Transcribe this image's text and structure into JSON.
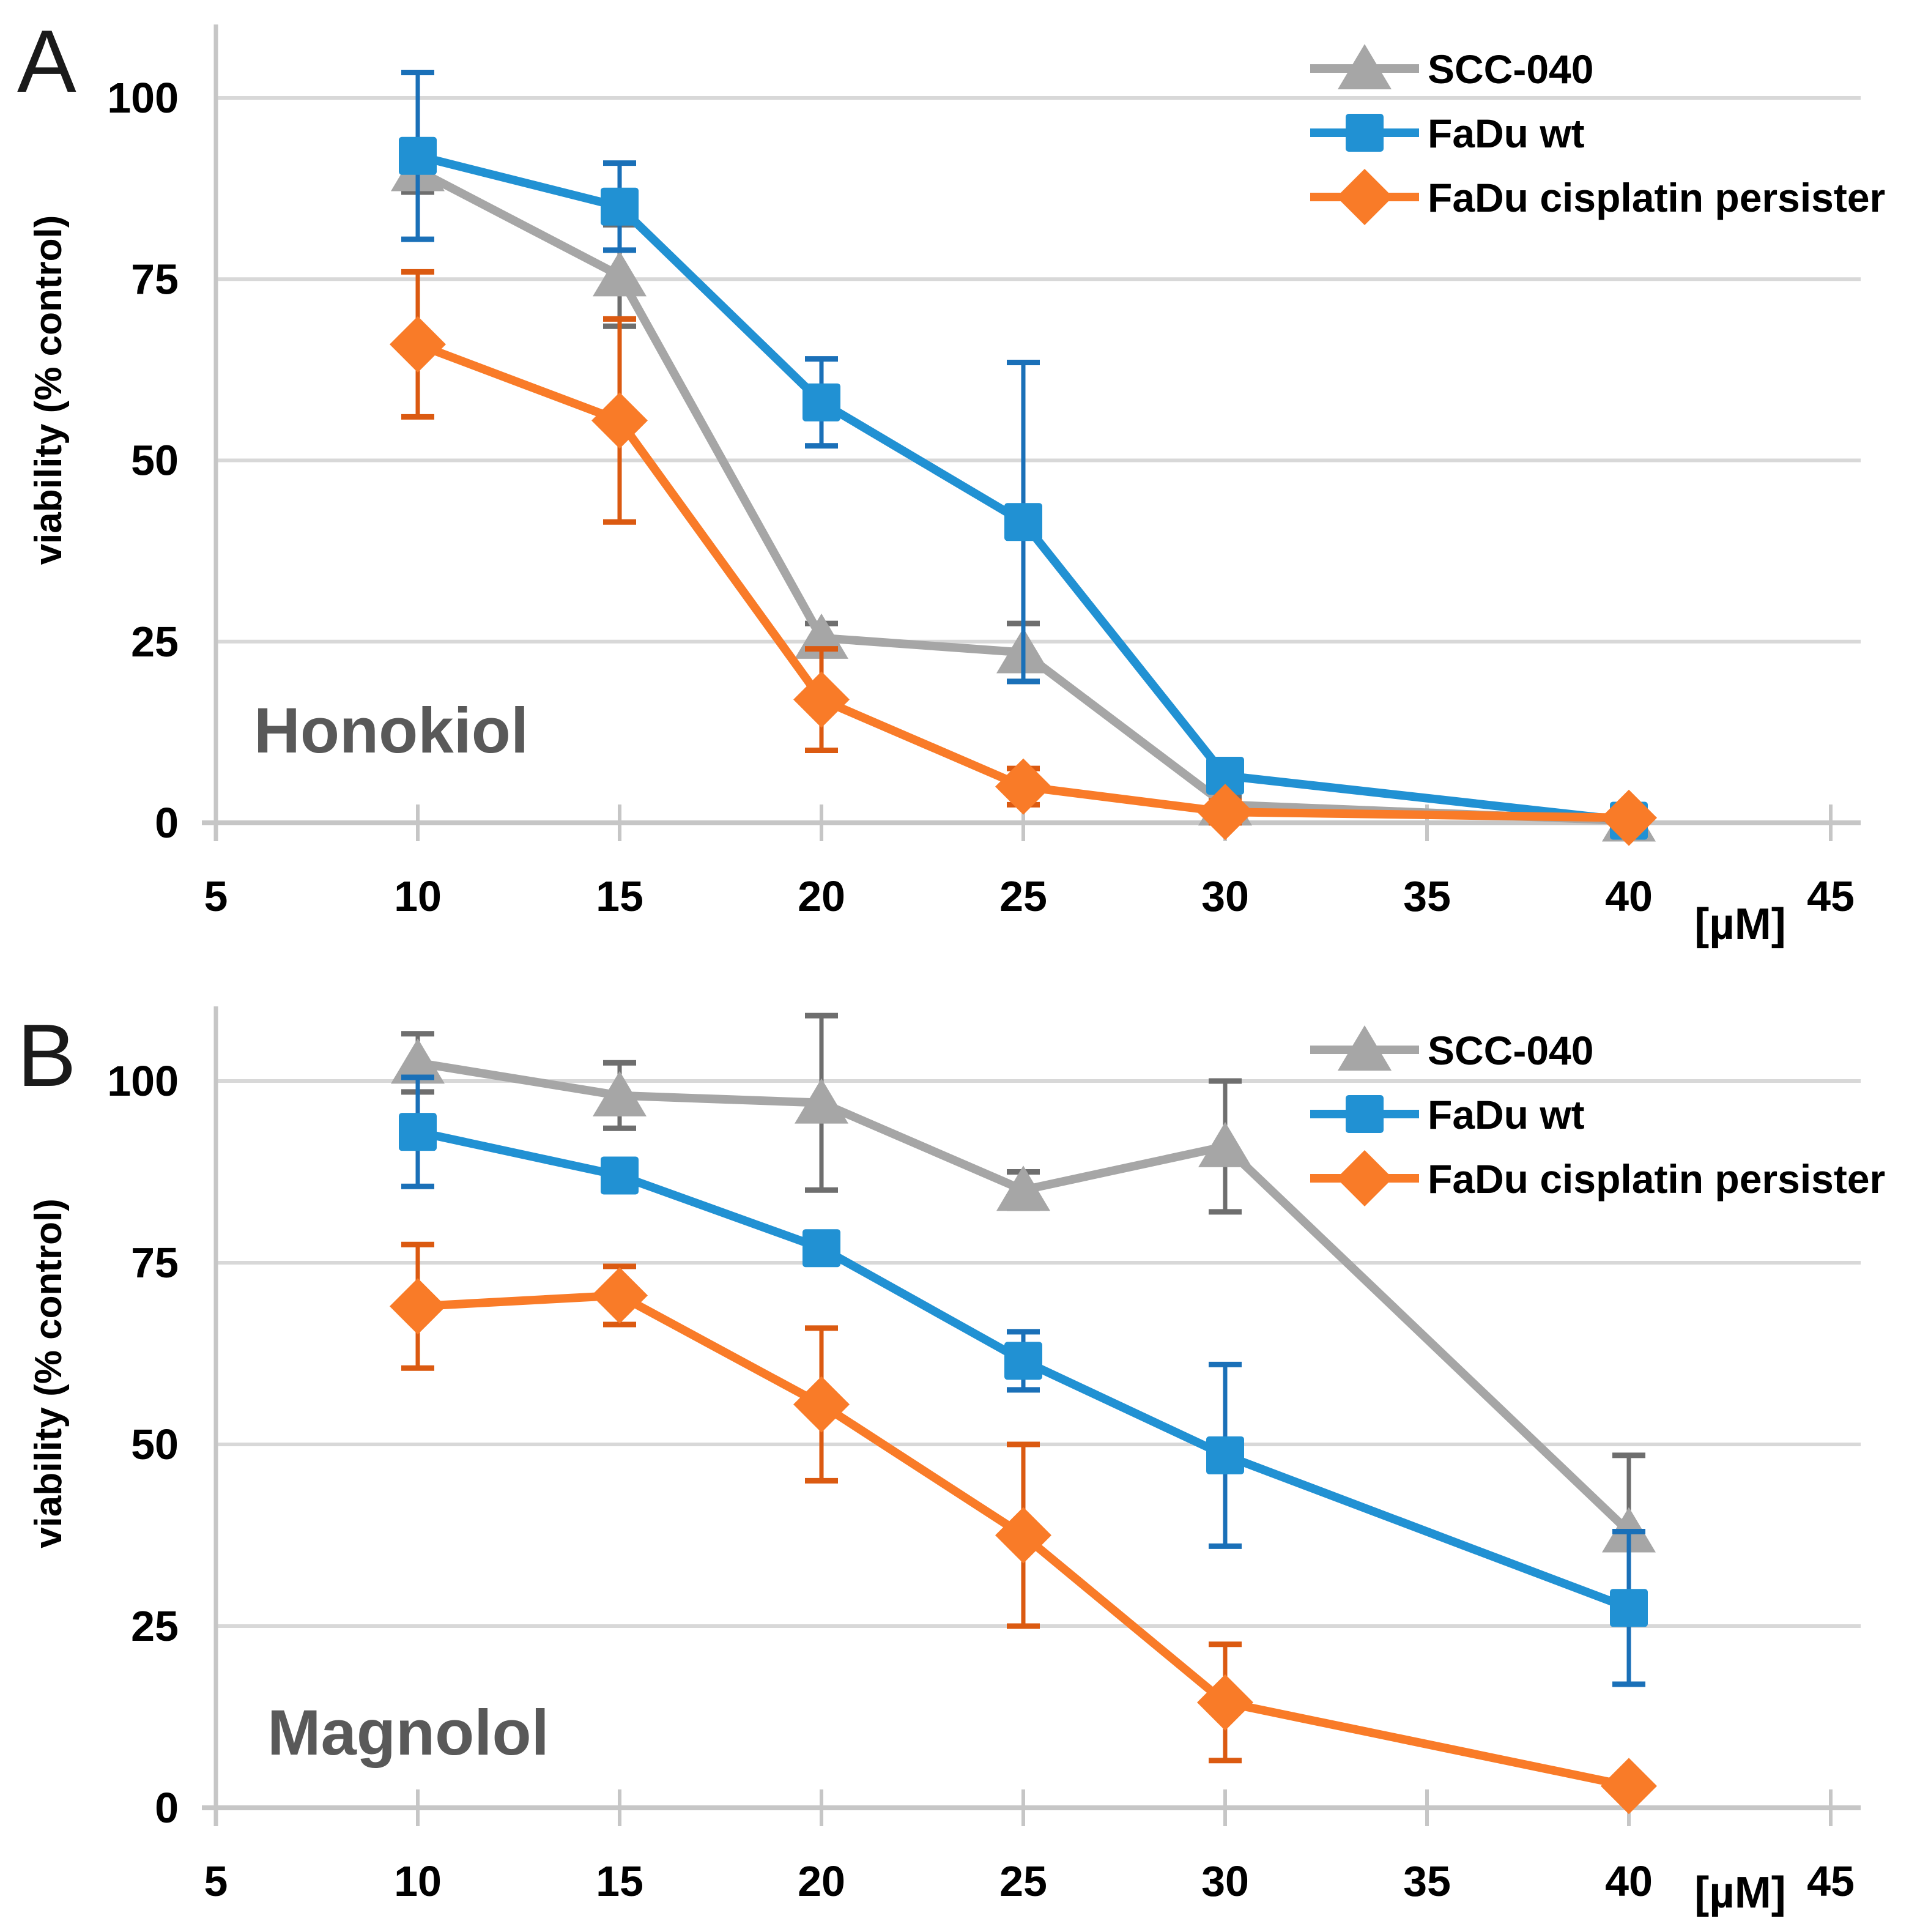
{
  "figure": {
    "y_axis_title": "viability (% control)",
    "x_axis_unit": "[µM]",
    "colors": {
      "gridline": "#D8D8D8",
      "axis": "#C6C6C6",
      "label_gray": "#595959",
      "series_gray": "#A6A6A6",
      "series_gray_error": "#6E6E6E",
      "series_blue": "#2191D3",
      "series_blue_error": "#1A70B8",
      "series_orange": "#F97B28",
      "series_orange_error": "#DB5A11"
    }
  },
  "chart_data": [
    {
      "type": "line",
      "panel_label": "A",
      "title": "Honokiol",
      "xlabel": "[µM]",
      "ylabel": "viability (% control)",
      "x": [
        10,
        15,
        20,
        25,
        30,
        40
      ],
      "x_ticks": [
        5,
        10,
        15,
        20,
        25,
        30,
        35,
        40,
        45
      ],
      "y_ticks": [
        0,
        25,
        50,
        75,
        100
      ],
      "xlim": [
        5,
        45
      ],
      "ylim": [
        0,
        110
      ],
      "grid": "horizontal",
      "legend_position": "top-right",
      "series": [
        {
          "name": "SCC-040",
          "marker": "triangle",
          "color": "#A6A6A6",
          "error_color": "#6E6E6E",
          "values": [
            90,
            75.5,
            25.5,
            23.5,
            2.5,
            0.3
          ],
          "errors": [
            3,
            7,
            2,
            4,
            1,
            0
          ]
        },
        {
          "name": "FaDu wt",
          "marker": "square",
          "color": "#2191D3",
          "error_color": "#1A70B8",
          "values": [
            92,
            85,
            58,
            41.5,
            6.5,
            0.3
          ],
          "errors": [
            11.5,
            6,
            6,
            22,
            1.5,
            0
          ]
        },
        {
          "name": "FaDu cisplatin persister",
          "marker": "diamond",
          "color": "#F97B28",
          "error_color": "#DB5A11",
          "values": [
            66,
            55.5,
            17,
            5,
            1.5,
            0.7
          ],
          "errors": [
            10,
            14,
            7,
            2.5,
            1.5,
            0
          ]
        }
      ]
    },
    {
      "type": "line",
      "panel_label": "B",
      "title": "Magnolol",
      "xlabel": "[µM]",
      "ylabel": "viability (% control)",
      "x": [
        10,
        15,
        20,
        25,
        30,
        40
      ],
      "x_ticks": [
        5,
        10,
        15,
        20,
        25,
        30,
        35,
        40,
        45
      ],
      "y_ticks": [
        0,
        25,
        50,
        75,
        100
      ],
      "xlim": [
        5,
        45
      ],
      "ylim": [
        0,
        110
      ],
      "grid": "horizontal",
      "legend_position": "top-right",
      "series": [
        {
          "name": "SCC-040",
          "marker": "triangle",
          "color": "#A6A6A6",
          "error_color": "#6E6E6E",
          "values": [
            102.5,
            98,
            97,
            85,
            91,
            38
          ],
          "errors": [
            4,
            4.5,
            12,
            2.5,
            9,
            10.5
          ]
        },
        {
          "name": "FaDu wt",
          "marker": "square",
          "color": "#2191D3",
          "error_color": "#1A70B8",
          "values": [
            93,
            87,
            77,
            61.5,
            48.5,
            27.5
          ],
          "errors": [
            7.5,
            1.5,
            1.5,
            4,
            12.5,
            10.5
          ]
        },
        {
          "name": "FaDu cisplatin persister",
          "marker": "diamond",
          "color": "#F97B28",
          "error_color": "#DB5A11",
          "values": [
            69,
            70.5,
            55.5,
            37.5,
            14.5,
            3
          ],
          "errors": [
            8.5,
            4,
            10.5,
            12.5,
            8,
            1
          ]
        }
      ]
    }
  ]
}
